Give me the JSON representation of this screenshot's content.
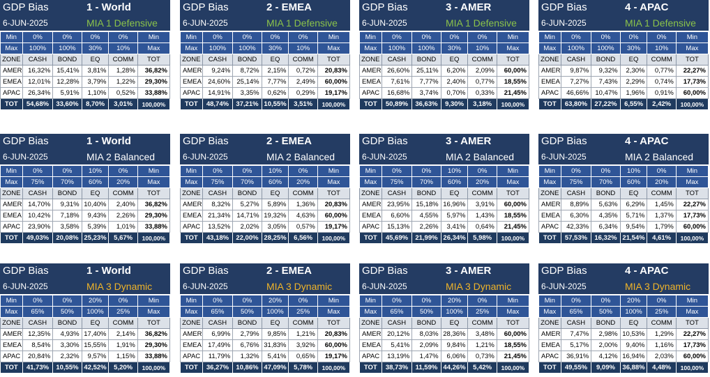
{
  "colors": {
    "header_bg": "#243c63",
    "minmax_bg": "#2f5597",
    "defensive": "#8bc34a",
    "balanced": "#ffffff",
    "dynamic": "#f0b429"
  },
  "panels": [
    {
      "bias": "GDP Bias",
      "region": "1 - World",
      "date": "6-JUN-2025",
      "profile": "MIA 1 Defensive",
      "style": "defensive",
      "min": [
        "Min",
        "0%",
        "0%",
        "0%",
        "0%",
        "Min"
      ],
      "max": [
        "Max",
        "100%",
        "100%",
        "30%",
        "10%",
        "Max"
      ],
      "header": [
        "ZONE",
        "CASH",
        "BOND",
        "EQ",
        "COMM",
        "TOT"
      ],
      "rows": [
        [
          "AMER",
          "16,32%",
          "15,41%",
          "3,81%",
          "1,28%",
          "36,82%"
        ],
        [
          "EMEA",
          "12,01%",
          "12,28%",
          "3,79%",
          "1,22%",
          "29,30%"
        ],
        [
          "APAC",
          "26,34%",
          "5,91%",
          "1,10%",
          "0,52%",
          "33,88%"
        ]
      ],
      "total": [
        "TOT",
        "54,68%",
        "33,60%",
        "8,70%",
        "3,01%",
        "100,00%"
      ]
    },
    {
      "bias": "GDP Bias",
      "region": "2 - EMEA",
      "date": "6-JUN-2025",
      "profile": "MIA 1 Defensive",
      "style": "defensive",
      "min": [
        "Min",
        "0%",
        "0%",
        "0%",
        "0%",
        "Min"
      ],
      "max": [
        "Max",
        "100%",
        "100%",
        "30%",
        "10%",
        "Max"
      ],
      "header": [
        "ZONE",
        "CASH",
        "BOND",
        "EQ",
        "COMM",
        "TOT"
      ],
      "rows": [
        [
          "AMER",
          "9,24%",
          "8,72%",
          "2,15%",
          "0,72%",
          "20,83%"
        ],
        [
          "EMEA",
          "24,60%",
          "25,14%",
          "7,77%",
          "2,49%",
          "60,00%"
        ],
        [
          "APAC",
          "14,91%",
          "3,35%",
          "0,62%",
          "0,29%",
          "19,17%"
        ]
      ],
      "total": [
        "TOT",
        "48,74%",
        "37,21%",
        "10,55%",
        "3,51%",
        "100,00%"
      ]
    },
    {
      "bias": "GDP Bias",
      "region": "3 - AMER",
      "date": "6-JUN-2025",
      "profile": "MIA 1 Defensive",
      "style": "defensive",
      "min": [
        "Min",
        "0%",
        "0%",
        "0%",
        "0%",
        "Min"
      ],
      "max": [
        "Max",
        "100%",
        "100%",
        "30%",
        "10%",
        "Max"
      ],
      "header": [
        "ZONE",
        "CASH",
        "BOND",
        "EQ",
        "COMM",
        "TOT"
      ],
      "rows": [
        [
          "AMER",
          "26,60%",
          "25,11%",
          "6,20%",
          "2,09%",
          "60,00%"
        ],
        [
          "EMEA",
          "7,61%",
          "7,77%",
          "2,40%",
          "0,77%",
          "18,55%"
        ],
        [
          "APAC",
          "16,68%",
          "3,74%",
          "0,70%",
          "0,33%",
          "21,45%"
        ]
      ],
      "total": [
        "TOT",
        "50,89%",
        "36,63%",
        "9,30%",
        "3,18%",
        "100,00%"
      ]
    },
    {
      "bias": "GDP Bias",
      "region": "4 - APAC",
      "date": "6-JUN-2025",
      "profile": "MIA 1 Defensive",
      "style": "defensive",
      "min": [
        "Min",
        "0%",
        "0%",
        "0%",
        "0%",
        "Min"
      ],
      "max": [
        "Max",
        "100%",
        "100%",
        "30%",
        "10%",
        "Max"
      ],
      "header": [
        "ZONE",
        "CASH",
        "BOND",
        "EQ",
        "COMM",
        "TOT"
      ],
      "rows": [
        [
          "AMER",
          "9,87%",
          "9,32%",
          "2,30%",
          "0,77%",
          "22,27%"
        ],
        [
          "EMEA",
          "7,27%",
          "7,43%",
          "2,29%",
          "0,74%",
          "17,73%"
        ],
        [
          "APAC",
          "46,66%",
          "10,47%",
          "1,96%",
          "0,91%",
          "60,00%"
        ]
      ],
      "total": [
        "TOT",
        "63,80%",
        "27,22%",
        "6,55%",
        "2,42%",
        "100,00%"
      ]
    },
    {
      "bias": "GDP Bias",
      "region": "1 - World",
      "date": "6-JUN-2025",
      "profile": "MIA 2 Balanced",
      "style": "balanced",
      "min": [
        "Min",
        "0%",
        "0%",
        "10%",
        "0%",
        "Min"
      ],
      "max": [
        "Max",
        "75%",
        "70%",
        "60%",
        "20%",
        "Max"
      ],
      "header": [
        "ZONE",
        "CASH",
        "BOND",
        "EQ",
        "COMM",
        "TOT"
      ],
      "rows": [
        [
          "AMER",
          "14,70%",
          "9,31%",
          "10,40%",
          "2,40%",
          "36,82%"
        ],
        [
          "EMEA",
          "10,42%",
          "7,18%",
          "9,43%",
          "2,26%",
          "29,30%"
        ],
        [
          "APAC",
          "23,90%",
          "3,58%",
          "5,39%",
          "1,01%",
          "33,88%"
        ]
      ],
      "total": [
        "TOT",
        "49,03%",
        "20,08%",
        "25,23%",
        "5,67%",
        "100,00%"
      ]
    },
    {
      "bias": "GDP Bias",
      "region": "2 - EMEA",
      "date": "6-JUN-2025",
      "profile": "MIA 2 Balanced",
      "style": "balanced",
      "min": [
        "Min",
        "0%",
        "0%",
        "10%",
        "0%",
        "Min"
      ],
      "max": [
        "Max",
        "75%",
        "70%",
        "60%",
        "20%",
        "Max"
      ],
      "header": [
        "ZONE",
        "CASH",
        "BOND",
        "EQ",
        "COMM",
        "TOT"
      ],
      "rows": [
        [
          "AMER",
          "8,32%",
          "5,27%",
          "5,89%",
          "1,36%",
          "20,83%"
        ],
        [
          "EMEA",
          "21,34%",
          "14,71%",
          "19,32%",
          "4,63%",
          "60,00%"
        ],
        [
          "APAC",
          "13,52%",
          "2,02%",
          "3,05%",
          "0,57%",
          "19,17%"
        ]
      ],
      "total": [
        "TOT",
        "43,18%",
        "22,00%",
        "28,25%",
        "6,56%",
        "100,00%"
      ]
    },
    {
      "bias": "GDP Bias",
      "region": "3 - AMER",
      "date": "6-JUN-2025",
      "profile": "MIA 2 Balanced",
      "style": "balanced",
      "min": [
        "Min",
        "0%",
        "0%",
        "10%",
        "0%",
        "Min"
      ],
      "max": [
        "Max",
        "75%",
        "70%",
        "60%",
        "20%",
        "Max"
      ],
      "header": [
        "ZONE",
        "CASH",
        "BOND",
        "EQ",
        "COMM",
        "TOT"
      ],
      "rows": [
        [
          "AMER",
          "23,95%",
          "15,18%",
          "16,96%",
          "3,91%",
          "60,00%"
        ],
        [
          "EMEA",
          "6,60%",
          "4,55%",
          "5,97%",
          "1,43%",
          "18,55%"
        ],
        [
          "APAC",
          "15,13%",
          "2,26%",
          "3,41%",
          "0,64%",
          "21,45%"
        ]
      ],
      "total": [
        "TOT",
        "45,69%",
        "21,99%",
        "26,34%",
        "5,98%",
        "100,00%"
      ]
    },
    {
      "bias": "GDP Bias",
      "region": "4 - APAC",
      "date": "6-JUN-2025",
      "profile": "MIA 2 Balanced",
      "style": "balanced",
      "min": [
        "Min",
        "0%",
        "0%",
        "10%",
        "0%",
        "Min"
      ],
      "max": [
        "Max",
        "75%",
        "70%",
        "60%",
        "20%",
        "Max"
      ],
      "header": [
        "ZONE",
        "CASH",
        "BOND",
        "EQ",
        "COMM",
        "TOT"
      ],
      "rows": [
        [
          "AMER",
          "8,89%",
          "5,63%",
          "6,29%",
          "1,45%",
          "22,27%"
        ],
        [
          "EMEA",
          "6,30%",
          "4,35%",
          "5,71%",
          "1,37%",
          "17,73%"
        ],
        [
          "APAC",
          "42,33%",
          "6,34%",
          "9,54%",
          "1,79%",
          "60,00%"
        ]
      ],
      "total": [
        "TOT",
        "57,53%",
        "16,32%",
        "21,54%",
        "4,61%",
        "100,00%"
      ]
    },
    {
      "bias": "GDP Bias",
      "region": "1 - World",
      "date": "6-JUN-2025",
      "profile": "MIA 3 Dynamic",
      "style": "dynamic",
      "min": [
        "Min",
        "0%",
        "0%",
        "20%",
        "0%",
        "Min"
      ],
      "max": [
        "Max",
        "65%",
        "50%",
        "100%",
        "25%",
        "Max"
      ],
      "header": [
        "ZONE",
        "CASH",
        "BOND",
        "EQ",
        "COMM",
        "TOT"
      ],
      "rows": [
        [
          "AMER",
          "12,35%",
          "4,93%",
          "17,40%",
          "2,14%",
          "36,82%"
        ],
        [
          "EMEA",
          "8,54%",
          "3,30%",
          "15,55%",
          "1,91%",
          "29,30%"
        ],
        [
          "APAC",
          "20,84%",
          "2,32%",
          "9,57%",
          "1,15%",
          "33,88%"
        ]
      ],
      "total": [
        "TOT",
        "41,73%",
        "10,55%",
        "42,52%",
        "5,20%",
        "100,00%"
      ]
    },
    {
      "bias": "GDP Bias",
      "region": "2 - EMEA",
      "date": "6-JUN-2025",
      "profile": "MIA 3 Dynamic",
      "style": "dynamic",
      "min": [
        "Min",
        "0%",
        "0%",
        "20%",
        "0%",
        "Min"
      ],
      "max": [
        "Max",
        "65%",
        "50%",
        "100%",
        "25%",
        "Max"
      ],
      "header": [
        "ZONE",
        "CASH",
        "BOND",
        "EQ",
        "COMM",
        "TOT"
      ],
      "rows": [
        [
          "AMER",
          "6,99%",
          "2,79%",
          "9,85%",
          "1,21%",
          "20,83%"
        ],
        [
          "EMEA",
          "17,49%",
          "6,76%",
          "31,83%",
          "3,92%",
          "60,00%"
        ],
        [
          "APAC",
          "11,79%",
          "1,32%",
          "5,41%",
          "0,65%",
          "19,17%"
        ]
      ],
      "total": [
        "TOT",
        "36,27%",
        "10,86%",
        "47,09%",
        "5,78%",
        "100,00%"
      ]
    },
    {
      "bias": "GDP Bias",
      "region": "3 - AMER",
      "date": "6-JUN-2025",
      "profile": "MIA 3 Dynamic",
      "style": "dynamic",
      "min": [
        "Min",
        "0%",
        "0%",
        "20%",
        "0%",
        "Min"
      ],
      "max": [
        "Max",
        "65%",
        "50%",
        "100%",
        "25%",
        "Max"
      ],
      "header": [
        "ZONE",
        "CASH",
        "BOND",
        "EQ",
        "COMM",
        "TOT"
      ],
      "rows": [
        [
          "AMER",
          "20,12%",
          "8,03%",
          "28,36%",
          "3,48%",
          "60,00%"
        ],
        [
          "EMEA",
          "5,41%",
          "2,09%",
          "9,84%",
          "1,21%",
          "18,55%"
        ],
        [
          "APAC",
          "13,19%",
          "1,47%",
          "6,06%",
          "0,73%",
          "21,45%"
        ]
      ],
      "total": [
        "TOT",
        "38,73%",
        "11,59%",
        "44,26%",
        "5,42%",
        "100,00%"
      ]
    },
    {
      "bias": "GDP Bias",
      "region": "4 - APAC",
      "date": "6-JUN-2025",
      "profile": "MIA 3 Dynamic",
      "style": "dynamic",
      "min": [
        "Min",
        "0%",
        "0%",
        "20%",
        "0%",
        "Min"
      ],
      "max": [
        "Max",
        "65%",
        "50%",
        "100%",
        "25%",
        "Max"
      ],
      "header": [
        "ZONE",
        "CASH",
        "BOND",
        "EQ",
        "COMM",
        "TOT"
      ],
      "rows": [
        [
          "AMER",
          "7,47%",
          "2,98%",
          "10,53%",
          "1,29%",
          "22,27%"
        ],
        [
          "EMEA",
          "5,17%",
          "2,00%",
          "9,40%",
          "1,16%",
          "17,73%"
        ],
        [
          "APAC",
          "36,91%",
          "4,12%",
          "16,94%",
          "2,03%",
          "60,00%"
        ]
      ],
      "total": [
        "TOT",
        "49,55%",
        "9,09%",
        "36,88%",
        "4,48%",
        "100,00%"
      ]
    }
  ]
}
